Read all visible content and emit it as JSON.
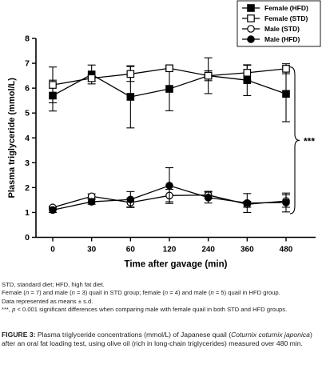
{
  "chart_data": {
    "type": "line",
    "xlabel": "Time after gavage (min)",
    "ylabel": "Plasma triglyceride (mmol/L)",
    "categories": [
      "0",
      "30",
      "60",
      "120",
      "240",
      "360",
      "480"
    ],
    "ylim": [
      0,
      8
    ],
    "yticks": [
      "0",
      "1",
      "2",
      "3",
      "4",
      "5",
      "6",
      "7",
      "8"
    ],
    "legend_position": "top-right",
    "significance_label": "***",
    "series": [
      {
        "name": "Female (HFD)",
        "marker": "filled-square",
        "values": [
          5.7,
          6.55,
          5.65,
          5.97,
          6.5,
          6.32,
          5.77
        ],
        "err": [
          0.62,
          0.38,
          1.25,
          0.88,
          0.72,
          0.62,
          1.12
        ]
      },
      {
        "name": "Female (STD)",
        "marker": "open-square",
        "values": [
          6.13,
          6.4,
          6.57,
          6.8,
          6.5,
          6.62,
          6.78
        ],
        "err": [
          0.72,
          0.12,
          0.3,
          0.12,
          0.2,
          0.3,
          0.2
        ]
      },
      {
        "name": "Male (STD)",
        "marker": "open-circle",
        "values": [
          1.2,
          1.65,
          1.4,
          1.68,
          1.7,
          1.33,
          1.46
        ],
        "err": [
          0.05,
          0.1,
          0.18,
          0.25,
          0.15,
          0.12,
          0.25
        ]
      },
      {
        "name": "Male (HFD)",
        "marker": "filled-circle",
        "values": [
          1.1,
          1.43,
          1.52,
          2.08,
          1.6,
          1.38,
          1.4
        ],
        "err": [
          0.1,
          0.1,
          0.32,
          0.72,
          0.22,
          0.38,
          0.38
        ]
      }
    ]
  },
  "notes": {
    "abbrev": "STD, standard diet; HFD, high fat diet.",
    "n_parts": [
      "Female (",
      "n",
      " = 7) and male (",
      "n",
      " = 3) quail in STD group; female (",
      "n",
      " = 4) and male (",
      "n",
      " = 5) quail in HFD group."
    ],
    "mean_sd": "Data represented as means ± s.d.",
    "sig_parts": [
      "***, ",
      "p",
      " < 0.001 significant differences when comparing male with female quail in both STD and HFD groups."
    ]
  },
  "caption": {
    "label": "FIGURE 3:",
    "parts": [
      " Plasma triglyceride concentrations (mmol/L) of Japanese quail (",
      "Coturnix coturnix japonica",
      ") after an oral fat loading test, using olive oil (rich in long-chain triglycerides) measured over 480 min."
    ]
  }
}
